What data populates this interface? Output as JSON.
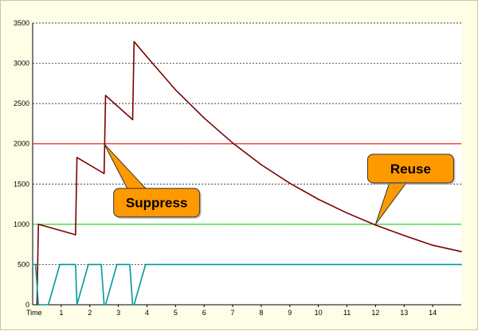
{
  "chart_data": {
    "type": "line",
    "title": "",
    "xlabel": "Time",
    "ylabel": "",
    "xlim": [
      0,
      15
    ],
    "ylim": [
      0,
      3500
    ],
    "x_ticks": [
      1,
      2,
      3,
      4,
      5,
      6,
      7,
      8,
      9,
      10,
      11,
      12,
      13,
      14
    ],
    "y_ticks": [
      0,
      500,
      1000,
      1500,
      2000,
      2500,
      3000,
      3500
    ],
    "grid": "horizontal dashed",
    "legend": "none",
    "thresholds": [
      {
        "label": "suppress threshold",
        "value": 2000,
        "color": "#ff0000"
      },
      {
        "label": "reuse threshold",
        "value": 1000,
        "color": "#00d000"
      }
    ],
    "series": [
      {
        "color": "#7b0000",
        "x": [
          0.15,
          0.2,
          1.5,
          1.55,
          2.5,
          2.55,
          3.5,
          3.55,
          4,
          5,
          6,
          7,
          8,
          9,
          10,
          11,
          12,
          13,
          14,
          15
        ],
        "y": [
          0,
          1000,
          870,
          1830,
          1630,
          2600,
          2300,
          3270,
          3080,
          2670,
          2320,
          2010,
          1740,
          1510,
          1310,
          1140,
          990,
          860,
          740,
          660
        ]
      },
      {
        "color": "#009999",
        "x": [
          0,
          0.1,
          0.2,
          0.55,
          0.95,
          1.5,
          1.55,
          1.95,
          2.4,
          2.5,
          2.55,
          2.95,
          3.4,
          3.5,
          3.55,
          3.95,
          15
        ],
        "y": [
          500,
          500,
          0,
          0,
          500,
          500,
          0,
          500,
          500,
          0,
          0,
          500,
          500,
          0,
          0,
          500,
          500
        ]
      }
    ],
    "annotations": [
      {
        "text": "Suppress",
        "x": 2.5,
        "y": 2000
      },
      {
        "text": "Reuse",
        "x": 12,
        "y": 1000
      }
    ]
  }
}
